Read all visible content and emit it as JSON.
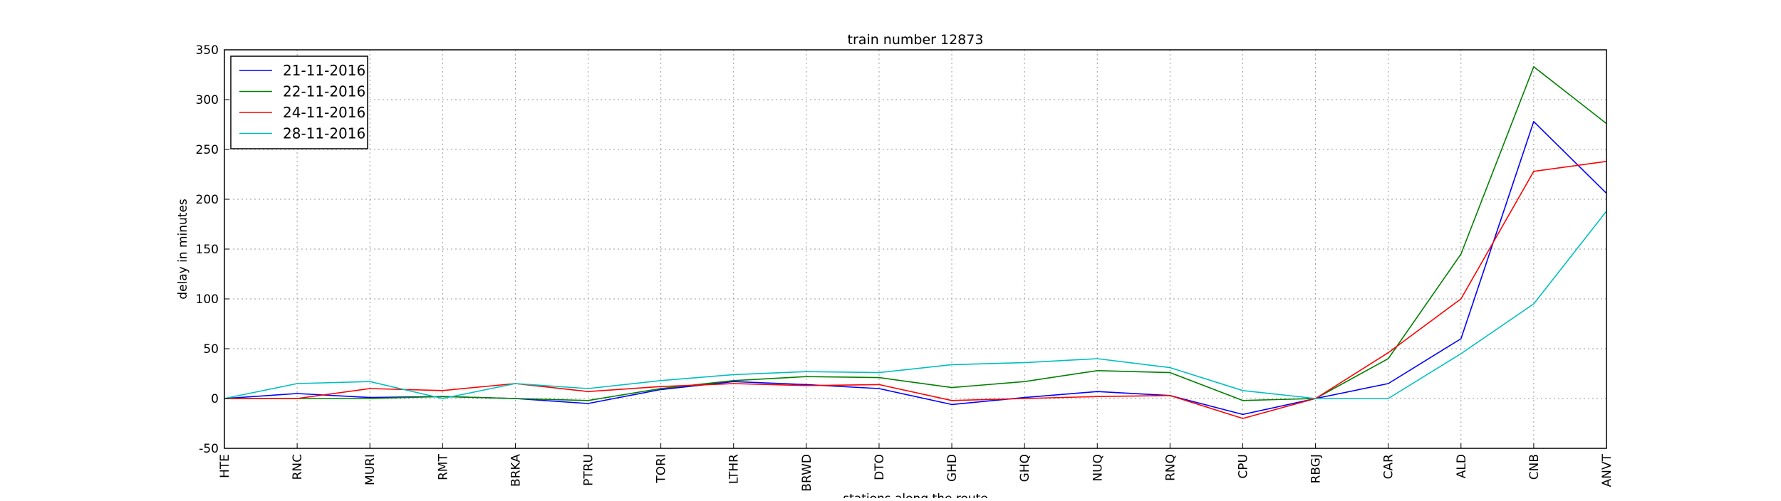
{
  "chart_data": {
    "type": "line",
    "title": "train number 12873",
    "xlabel": "stations along the route",
    "ylabel": "delay in minutes",
    "ylim": [
      -50,
      350
    ],
    "yticks": [
      -50,
      0,
      50,
      100,
      150,
      200,
      250,
      300,
      350
    ],
    "grid": true,
    "legend_position": "top-left",
    "categories": [
      "HTE",
      "RNC",
      "MURI",
      "RMT",
      "BRKA",
      "PTRU",
      "TORI",
      "LTHR",
      "BRWD",
      "DTO",
      "GHD",
      "GHQ",
      "NUQ",
      "RNQ",
      "CPU",
      "RBGJ",
      "CAR",
      "ALD",
      "CNB",
      "ANVT"
    ],
    "series": [
      {
        "name": "21-11-2016",
        "color": "#0000ff",
        "values": [
          0,
          5,
          1,
          2,
          0,
          -5,
          9,
          17,
          14,
          10,
          -6,
          1,
          7,
          3,
          -16,
          0,
          15,
          60,
          278,
          206
        ]
      },
      {
        "name": "22-11-2016",
        "color": "#008000",
        "values": [
          0,
          0,
          0,
          2,
          0,
          -2,
          10,
          18,
          22,
          21,
          11,
          17,
          28,
          26,
          -2,
          0,
          40,
          145,
          333,
          276
        ]
      },
      {
        "name": "24-11-2016",
        "color": "#ff0000",
        "values": [
          0,
          0,
          10,
          8,
          15,
          7,
          12,
          15,
          13,
          14,
          -2,
          0,
          2,
          3,
          -20,
          0,
          46,
          100,
          228,
          238
        ]
      },
      {
        "name": "28-11-2016",
        "color": "#00bfbf",
        "values": [
          0,
          15,
          17,
          0,
          15,
          10,
          18,
          24,
          27,
          26,
          34,
          36,
          40,
          31,
          8,
          0,
          0,
          45,
          95,
          188
        ]
      }
    ]
  }
}
